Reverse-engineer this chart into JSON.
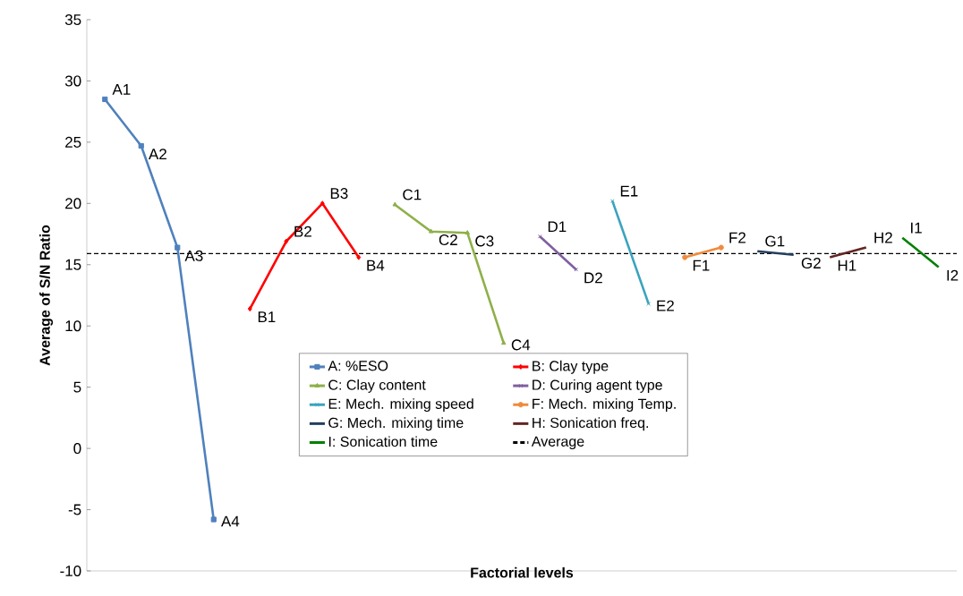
{
  "chart_data": {
    "type": "line",
    "xlabel": "Factorial levels",
    "ylabel": "Average of S/N Ratio",
    "categories": [
      null,
      null,
      null,
      null,
      null,
      null,
      null,
      null,
      null,
      null,
      null,
      null,
      null,
      null,
      null,
      null,
      null,
      null,
      null,
      null,
      null,
      null,
      null,
      null
    ],
    "ylim": [
      -10,
      35
    ],
    "yticks": [
      -10,
      -5,
      0,
      5,
      10,
      15,
      20,
      25,
      30,
      35
    ],
    "grid": false,
    "legend": "bottom right",
    "tick_labels": "y",
    "series": [
      {
        "name": "A: %ESO",
        "color": "#4f81bd",
        "marker": "square",
        "values": [
          28.5,
          24.7,
          16.4,
          -5.8,
          null,
          null,
          null,
          null,
          null,
          null,
          null,
          null,
          null,
          null,
          null,
          null,
          null,
          null,
          null,
          null,
          null,
          null,
          null,
          null
        ],
        "value_labels": [
          "A1",
          "A2",
          "A3",
          "A4",
          null,
          null,
          null,
          null,
          null,
          null,
          null,
          null,
          null,
          null,
          null,
          null,
          null,
          null,
          null,
          null,
          null,
          null,
          null,
          null
        ]
      },
      {
        "name": "B: Clay type",
        "color": "#ff0000",
        "marker": "diamond",
        "values": [
          null,
          null,
          null,
          null,
          11.4,
          16.9,
          20.0,
          15.6,
          null,
          null,
          null,
          null,
          null,
          null,
          null,
          null,
          null,
          null,
          null,
          null,
          null,
          null,
          null,
          null
        ],
        "value_labels": [
          null,
          null,
          null,
          null,
          "B1",
          "B2",
          "B3",
          "B4",
          null,
          null,
          null,
          null,
          null,
          null,
          null,
          null,
          null,
          null,
          null,
          null,
          null,
          null,
          null,
          null
        ]
      },
      {
        "name": "C: Clay content",
        "color": "#8eb04a",
        "marker": "triangle",
        "values": [
          null,
          null,
          null,
          null,
          null,
          null,
          null,
          null,
          19.9,
          17.7,
          17.6,
          8.6,
          null,
          null,
          null,
          null,
          null,
          null,
          null,
          null,
          null,
          null,
          null,
          null
        ],
        "value_labels": [
          null,
          null,
          null,
          null,
          null,
          null,
          null,
          null,
          "C1",
          "C2",
          "C3",
          "C4",
          null,
          null,
          null,
          null,
          null,
          null,
          null,
          null,
          null,
          null,
          null,
          null
        ]
      },
      {
        "name": "D: Curing agent type",
        "color": "#7f5fa0",
        "marker": "cross",
        "values": [
          null,
          null,
          null,
          null,
          null,
          null,
          null,
          null,
          null,
          null,
          null,
          null,
          17.3,
          14.6,
          null,
          null,
          null,
          null,
          null,
          null,
          null,
          null,
          null,
          null
        ],
        "value_labels": [
          null,
          null,
          null,
          null,
          null,
          null,
          null,
          null,
          null,
          null,
          null,
          null,
          "D1",
          "D2",
          null,
          null,
          null,
          null,
          null,
          null,
          null,
          null,
          null,
          null
        ]
      },
      {
        "name": "E: Mech. mixing speed",
        "color": "#3ba3bd",
        "marker": "cross",
        "values": [
          null,
          null,
          null,
          null,
          null,
          null,
          null,
          null,
          null,
          null,
          null,
          null,
          null,
          null,
          20.2,
          11.8,
          null,
          null,
          null,
          null,
          null,
          null,
          null,
          null
        ],
        "value_labels": [
          null,
          null,
          null,
          null,
          null,
          null,
          null,
          null,
          null,
          null,
          null,
          null,
          null,
          null,
          "E1",
          "E2",
          null,
          null,
          null,
          null,
          null,
          null,
          null,
          null
        ]
      },
      {
        "name": "F: Mech. mixing Temp.",
        "color": "#f08a3c",
        "marker": "circle",
        "values": [
          null,
          null,
          null,
          null,
          null,
          null,
          null,
          null,
          null,
          null,
          null,
          null,
          null,
          null,
          null,
          null,
          15.6,
          16.4,
          null,
          null,
          null,
          null,
          null,
          null
        ],
        "value_labels": [
          null,
          null,
          null,
          null,
          null,
          null,
          null,
          null,
          null,
          null,
          null,
          null,
          null,
          null,
          null,
          null,
          "F1",
          "F2",
          null,
          null,
          null,
          null,
          null,
          null
        ]
      },
      {
        "name": "G: Mech. mixing time",
        "color": "#243f60",
        "marker": "none",
        "values": [
          null,
          null,
          null,
          null,
          null,
          null,
          null,
          null,
          null,
          null,
          null,
          null,
          null,
          null,
          null,
          null,
          null,
          null,
          16.1,
          15.8,
          null,
          null,
          null,
          null
        ],
        "value_labels": [
          null,
          null,
          null,
          null,
          null,
          null,
          null,
          null,
          null,
          null,
          null,
          null,
          null,
          null,
          null,
          null,
          null,
          null,
          "G1",
          "G2",
          null,
          null,
          null,
          null
        ]
      },
      {
        "name": "H: Sonication freq.",
        "color": "#632523",
        "marker": "none",
        "values": [
          null,
          null,
          null,
          null,
          null,
          null,
          null,
          null,
          null,
          null,
          null,
          null,
          null,
          null,
          null,
          null,
          null,
          null,
          null,
          null,
          15.6,
          16.4,
          null,
          null
        ],
        "value_labels": [
          null,
          null,
          null,
          null,
          null,
          null,
          null,
          null,
          null,
          null,
          null,
          null,
          null,
          null,
          null,
          null,
          null,
          null,
          null,
          null,
          "H1",
          "H2",
          null,
          null
        ]
      },
      {
        "name": "I: Sonication time",
        "color": "#008000",
        "marker": "none",
        "values": [
          null,
          null,
          null,
          null,
          null,
          null,
          null,
          null,
          null,
          null,
          null,
          null,
          null,
          null,
          null,
          null,
          null,
          null,
          null,
          null,
          null,
          null,
          17.2,
          14.8
        ],
        "value_labels": [
          null,
          null,
          null,
          null,
          null,
          null,
          null,
          null,
          null,
          null,
          null,
          null,
          null,
          null,
          null,
          null,
          null,
          null,
          null,
          null,
          null,
          null,
          "I1",
          "I2"
        ]
      }
    ],
    "ref_lines": [
      {
        "axis": "y",
        "value": 15.9,
        "label": "Average",
        "color": "#000000",
        "line_style": "dashed"
      }
    ]
  }
}
